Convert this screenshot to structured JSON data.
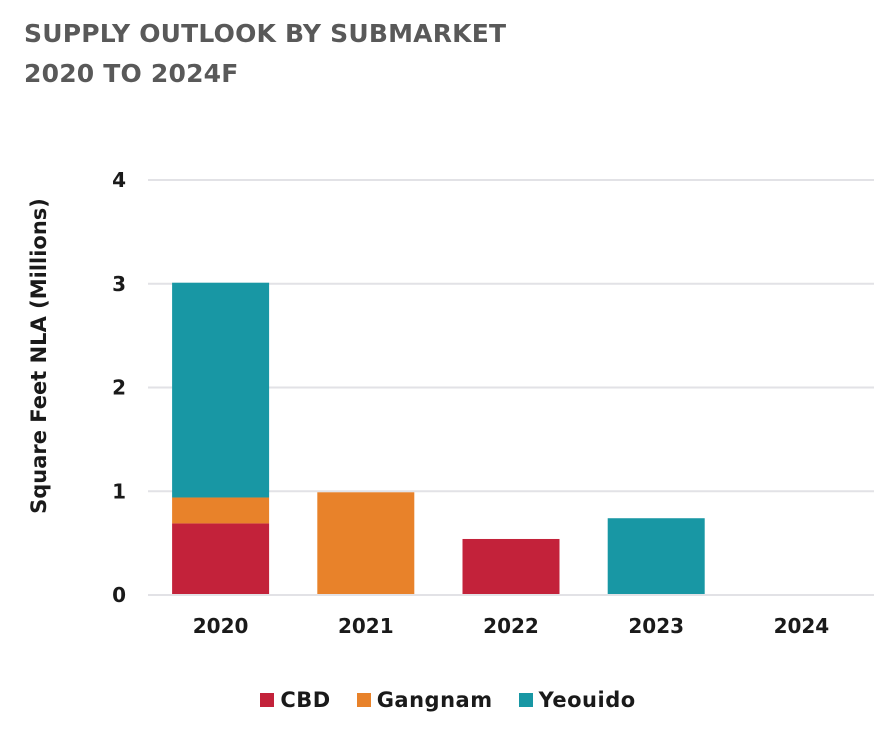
{
  "chart_data": {
    "type": "bar",
    "stacked": true,
    "title": "SUPPLY OUTLOOK BY SUBMARKET",
    "subtitle": "2020 TO 2024F",
    "ylabel": "Square Feet NLA (Millions)",
    "xlabel": "",
    "ylim": [
      0,
      4
    ],
    "yticks": [
      "0",
      "1",
      "2",
      "3",
      "4"
    ],
    "grid": true,
    "legend_position": "bottom",
    "categories": [
      "2020",
      "2021",
      "2022",
      "2023",
      "2024"
    ],
    "series": [
      {
        "name": "CBD",
        "color": "#C3223A",
        "values": [
          0.69,
          0,
          0.54,
          0,
          0
        ]
      },
      {
        "name": "Gangnam",
        "color": "#E8822A",
        "values": [
          0.25,
          0.99,
          0,
          0,
          0
        ]
      },
      {
        "name": "Yeouido",
        "color": "#1897A4",
        "values": [
          2.07,
          0,
          0,
          0.74,
          0
        ]
      }
    ]
  }
}
